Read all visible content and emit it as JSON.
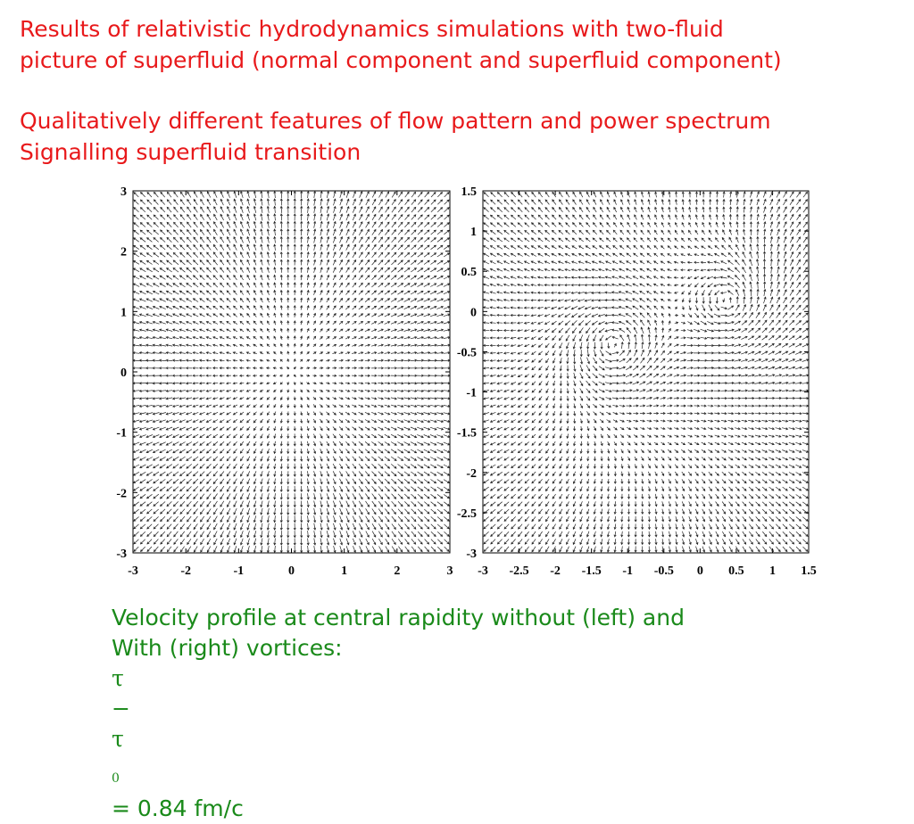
{
  "slide": {
    "heading1": {
      "line1": "Results of relativistic hydrodynamics simulations with two-fluid",
      "line2": "picture of superfluid (normal component and superfluid component)"
    },
    "heading2": {
      "line1": "Qualitatively different features of flow pattern and power spectrum",
      "line2": "Signalling superfluid transition"
    },
    "caption": {
      "line1": "Velocity profile at central rapidity without (left) and",
      "line2_prefix": "With (right) vortices: ",
      "tau": "τ",
      "dash": "−",
      "tau0_base": "τ",
      "tau0_sub": "0",
      "line2_suffix": " = 0.84 fm/c"
    },
    "colors": {
      "heading": "#e8191b",
      "caption": "#1a8a1a"
    }
  },
  "chart_data": [
    {
      "type": "vector-field",
      "title": "",
      "xlabel": "",
      "ylabel": "",
      "xlim": [
        -3,
        3
      ],
      "ylim": [
        -3,
        3
      ],
      "x_ticks": [
        "-3",
        "-2",
        "-1",
        "0",
        "1",
        "2",
        "3"
      ],
      "y_ticks": [
        "3",
        "2",
        "1",
        "0",
        "-1",
        "-2",
        "-3"
      ],
      "grid_points_per_axis": 48,
      "field": "radial outward flow, no vortices"
    },
    {
      "type": "vector-field",
      "title": "",
      "xlabel": "",
      "ylabel": "",
      "xlim": [
        -3,
        1.5
      ],
      "ylim": [
        -3,
        1.5
      ],
      "x_ticks": [
        "-3",
        "-2.5",
        "-2",
        "-1.5",
        "-1",
        "-0.5",
        "0",
        "0.5",
        "1",
        "1.5"
      ],
      "y_ticks": [
        "1.5",
        "1",
        "0.5",
        "0",
        "-0.5",
        "-1",
        "-1.5",
        "-2",
        "-2.5",
        "-3"
      ],
      "grid_points_per_axis": 48,
      "field": "radial flow with vortices",
      "vortices": [
        {
          "x": -1.2,
          "y": -0.4,
          "circulation": 1
        },
        {
          "x": 0.4,
          "y": 0.1,
          "circulation": 1
        }
      ]
    }
  ]
}
